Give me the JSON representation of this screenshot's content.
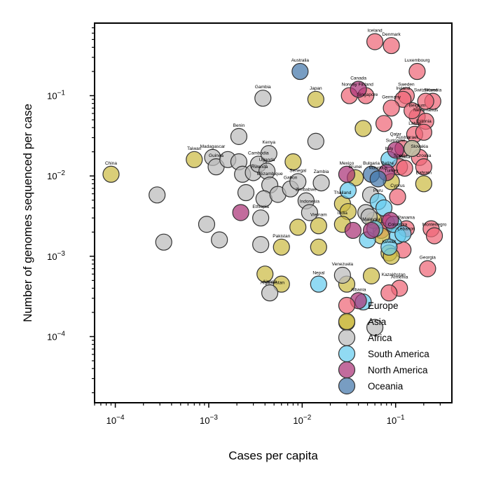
{
  "chart_data": {
    "type": "scatter",
    "xlabel": "Cases per capita",
    "ylabel": "Number of genomes sequenced per case",
    "x_scale": "log",
    "y_scale": "log",
    "xlim": [
      6e-05,
      0.4
    ],
    "ylim": [
      1.5e-05,
      0.8
    ],
    "x_ticks": [
      {
        "value": 0.0001,
        "base": "10",
        "exp": "−4"
      },
      {
        "value": 0.001,
        "base": "10",
        "exp": "−3"
      },
      {
        "value": 0.01,
        "base": "10",
        "exp": "−2"
      },
      {
        "value": 0.1,
        "base": "10",
        "exp": "−1"
      }
    ],
    "y_ticks": [
      {
        "value": 0.0001,
        "base": "10",
        "exp": "−4"
      },
      {
        "value": 0.001,
        "base": "10",
        "exp": "−3"
      },
      {
        "value": 0.01,
        "base": "10",
        "exp": "−2"
      },
      {
        "value": 0.1,
        "base": "10",
        "exp": "−1"
      }
    ],
    "legend_position": "lower-right",
    "grid": false,
    "series": [
      {
        "name": "Europe",
        "color": "#ee6677",
        "points": [
          {
            "x": 0.06,
            "y": 0.47,
            "label": "Iceland"
          },
          {
            "x": 0.09,
            "y": 0.42,
            "label": "Denmark"
          },
          {
            "x": 0.17,
            "y": 0.2,
            "label": "Luxembourg"
          },
          {
            "x": 0.25,
            "y": 0.085,
            "label": "Slovenia"
          },
          {
            "x": 0.13,
            "y": 0.1,
            "label": "Sweden"
          },
          {
            "x": 0.12,
            "y": 0.09,
            "label": "Ireland"
          },
          {
            "x": 0.21,
            "y": 0.085,
            "label": "Switzerland"
          },
          {
            "x": 0.032,
            "y": 0.1,
            "label": "Norway"
          },
          {
            "x": 0.048,
            "y": 0.1,
            "label": "Finland"
          },
          {
            "x": 0.09,
            "y": 0.07,
            "label": "Germany"
          },
          {
            "x": 0.17,
            "y": 0.055,
            "label": "Belgium"
          },
          {
            "x": 0.21,
            "y": 0.048,
            "label": "Netherlands"
          },
          {
            "x": 0.16,
            "y": 0.033,
            "label": "Latvia"
          },
          {
            "x": 0.2,
            "y": 0.035,
            "label": "Estonia"
          },
          {
            "x": 0.12,
            "y": 0.022,
            "label": "Austria"
          },
          {
            "x": 0.18,
            "y": 0.017,
            "label": "Slovakia"
          },
          {
            "x": 0.2,
            "y": 0.013,
            "label": "Croatia"
          },
          {
            "x": 0.11,
            "y": 0.013,
            "label": "Spain"
          },
          {
            "x": 0.125,
            "y": 0.0125,
            "label": "Malta"
          },
          {
            "x": 0.105,
            "y": 0.0055,
            "label": "Cyprus"
          },
          {
            "x": 0.08,
            "y": 0.0026,
            "label": ""
          },
          {
            "x": 0.13,
            "y": 0.0022,
            "label": "Panama"
          },
          {
            "x": 0.24,
            "y": 0.0022,
            "label": ""
          },
          {
            "x": 0.26,
            "y": 0.0018,
            "label": "Montenegro"
          },
          {
            "x": 0.22,
            "y": 0.0007,
            "label": "Georgia"
          },
          {
            "x": 0.11,
            "y": 0.0004,
            "label": "Armenia"
          },
          {
            "x": 0.085,
            "y": 0.00035,
            "label": ""
          },
          {
            "x": 0.07,
            "y": 0.0021,
            "label": ""
          },
          {
            "x": 0.075,
            "y": 0.045,
            "label": ""
          },
          {
            "x": 0.15,
            "y": 0.065,
            "label": ""
          },
          {
            "x": 0.12,
            "y": 0.0012,
            "label": ""
          }
        ]
      },
      {
        "name": "Asia",
        "color": "#ccbb44",
        "points": [
          {
            "x": 9e-05,
            "y": 0.0105,
            "label": "China"
          },
          {
            "x": 0.0007,
            "y": 0.016,
            "label": "Taiwan"
          },
          {
            "x": 0.014,
            "y": 0.09,
            "label": "Japan"
          },
          {
            "x": 0.045,
            "y": 0.039,
            "label": ""
          },
          {
            "x": 0.008,
            "y": 0.015,
            "label": ""
          },
          {
            "x": 0.037,
            "y": 0.0095,
            "label": "Brunei"
          },
          {
            "x": 0.09,
            "y": 0.0085,
            "label": "Turkey"
          },
          {
            "x": 0.2,
            "y": 0.008,
            "label": "Bahrain"
          },
          {
            "x": 0.15,
            "y": 0.022,
            "label": "Israel"
          },
          {
            "x": 0.027,
            "y": 0.0045,
            "label": "Thailand"
          },
          {
            "x": 0.031,
            "y": 0.0036,
            "label": ""
          },
          {
            "x": 0.027,
            "y": 0.0025,
            "label": "India"
          },
          {
            "x": 0.015,
            "y": 0.0024,
            "label": "Vietnam"
          },
          {
            "x": 0.009,
            "y": 0.0023,
            "label": ""
          },
          {
            "x": 0.015,
            "y": 0.0013,
            "label": ""
          },
          {
            "x": 0.006,
            "y": 0.0013,
            "label": "Pakistan"
          },
          {
            "x": 0.004,
            "y": 0.0006,
            "label": ""
          },
          {
            "x": 0.006,
            "y": 0.00045,
            "label": ""
          },
          {
            "x": 0.03,
            "y": 0.00045,
            "label": ""
          },
          {
            "x": 0.055,
            "y": 0.00057,
            "label": ""
          },
          {
            "x": 0.085,
            "y": 0.0011,
            "label": "Kuwait"
          },
          {
            "x": 0.09,
            "y": 0.001,
            "label": ""
          },
          {
            "x": 0.07,
            "y": 0.0018,
            "label": ""
          },
          {
            "x": 0.058,
            "y": 0.0028,
            "label": ""
          },
          {
            "x": 0.03,
            "y": 0.00015,
            "label": ""
          }
        ]
      },
      {
        "name": "Africa",
        "color": "#bbbbbb",
        "points": [
          {
            "x": 0.00028,
            "y": 0.0058,
            "label": ""
          },
          {
            "x": 0.00033,
            "y": 0.0015,
            "label": ""
          },
          {
            "x": 0.00095,
            "y": 0.0025,
            "label": ""
          },
          {
            "x": 0.0013,
            "y": 0.0016,
            "label": ""
          },
          {
            "x": 0.0038,
            "y": 0.093,
            "label": "Gambia"
          },
          {
            "x": 0.0021,
            "y": 0.031,
            "label": "Benin"
          },
          {
            "x": 0.0011,
            "y": 0.017,
            "label": "Madagascar"
          },
          {
            "x": 0.0012,
            "y": 0.013,
            "label": "Guinea"
          },
          {
            "x": 0.0016,
            "y": 0.016,
            "label": ""
          },
          {
            "x": 0.0021,
            "y": 0.015,
            "label": ""
          },
          {
            "x": 0.0023,
            "y": 0.0105,
            "label": ""
          },
          {
            "x": 0.0025,
            "y": 0.0062,
            "label": ""
          },
          {
            "x": 0.003,
            "y": 0.011,
            "label": ""
          },
          {
            "x": 0.0034,
            "y": 0.014,
            "label": "Cambodia"
          },
          {
            "x": 0.0044,
            "y": 0.019,
            "label": "Kenya"
          },
          {
            "x": 0.0042,
            "y": 0.0115,
            "label": "Uganda"
          },
          {
            "x": 0.0045,
            "y": 0.0077,
            "label": "Mozambique"
          },
          {
            "x": 0.0039,
            "y": 0.0052,
            "label": ""
          },
          {
            "x": 0.0055,
            "y": 0.0059,
            "label": ""
          },
          {
            "x": 0.0075,
            "y": 0.0069,
            "label": "Gabon"
          },
          {
            "x": 0.011,
            "y": 0.0049,
            "label": "Zimbabwe"
          },
          {
            "x": 0.012,
            "y": 0.0035,
            "label": "Indonesia"
          },
          {
            "x": 0.009,
            "y": 0.0085,
            "label": "Senegal"
          },
          {
            "x": 0.0036,
            "y": 0.003,
            "label": "Ethiopia"
          },
          {
            "x": 0.0036,
            "y": 0.0014,
            "label": ""
          },
          {
            "x": 0.014,
            "y": 0.027,
            "label": ""
          },
          {
            "x": 0.016,
            "y": 0.0082,
            "label": "Zambia"
          },
          {
            "x": 0.0045,
            "y": 0.00035,
            "label": "Algeria"
          },
          {
            "x": 0.027,
            "y": 0.00058,
            "label": "Venezuela"
          },
          {
            "x": 0.054,
            "y": 0.0058,
            "label": ""
          },
          {
            "x": 0.048,
            "y": 0.0035,
            "label": ""
          },
          {
            "x": 0.052,
            "y": 0.0031,
            "label": ""
          },
          {
            "x": 0.06,
            "y": 0.00013,
            "label": ""
          },
          {
            "x": 0.15,
            "y": 0.022,
            "label": ""
          }
        ]
      },
      {
        "name": "South America",
        "color": "#66ccee",
        "points": [
          {
            "x": 0.015,
            "y": 0.00045,
            "label": "Nepal"
          },
          {
            "x": 0.031,
            "y": 0.0066,
            "label": ""
          },
          {
            "x": 0.065,
            "y": 0.0048,
            "label": "Peru"
          },
          {
            "x": 0.075,
            "y": 0.004,
            "label": ""
          },
          {
            "x": 0.05,
            "y": 0.0016,
            "label": ""
          },
          {
            "x": 0.06,
            "y": 0.0022,
            "label": ""
          },
          {
            "x": 0.105,
            "y": 0.0018,
            "label": "Colombia"
          },
          {
            "x": 0.095,
            "y": 0.0025,
            "label": ""
          },
          {
            "x": 0.12,
            "y": 0.0019,
            "label": ""
          },
          {
            "x": 0.085,
            "y": 0.0013,
            "label": ""
          },
          {
            "x": 0.045,
            "y": 0.00027,
            "label": ""
          },
          {
            "x": 0.085,
            "y": 0.016,
            "label": ""
          }
        ]
      },
      {
        "name": "North America",
        "color": "#aa3377",
        "points": [
          {
            "x": 0.04,
            "y": 0.12,
            "label": "Canada"
          },
          {
            "x": 0.0022,
            "y": 0.0035,
            "label": ""
          },
          {
            "x": 0.03,
            "y": 0.0105,
            "label": "Mexico"
          },
          {
            "x": 0.055,
            "y": 0.0021,
            "label": "Malaysia"
          },
          {
            "x": 0.088,
            "y": 0.0028,
            "label": ""
          },
          {
            "x": 0.04,
            "y": 0.00028,
            "label": "Albania"
          },
          {
            "x": 0.1,
            "y": 0.021,
            "label": ""
          },
          {
            "x": 0.08,
            "y": 0.011,
            "label": ""
          },
          {
            "x": 0.035,
            "y": 0.0021,
            "label": ""
          }
        ]
      },
      {
        "name": "Oceania",
        "color": "#4477aa",
        "points": [
          {
            "x": 0.0095,
            "y": 0.2,
            "label": "Australia"
          },
          {
            "x": 0.055,
            "y": 0.0105,
            "label": "Bulgaria"
          },
          {
            "x": 0.065,
            "y": 0.0092,
            "label": "Mauritius"
          }
        ]
      }
    ],
    "extra_labels": [
      {
        "x": 0.05,
        "y": 0.075,
        "text": "Singapore"
      },
      {
        "x": 0.1,
        "y": 0.02,
        "text": "Suriname"
      },
      {
        "x": 0.085,
        "y": 0.016,
        "text": "Italy"
      },
      {
        "x": 0.1,
        "y": 0.024,
        "text": "Qatar"
      },
      {
        "x": 0.082,
        "y": 0.0105,
        "text": "Belize"
      },
      {
        "x": 0.13,
        "y": 0.0016,
        "text": "Lebanon"
      },
      {
        "x": 0.095,
        "y": 0.00043,
        "text": "Kazakhstan"
      },
      {
        "x": 0.0035,
        "y": 0.0095,
        "text": "Rwanda"
      },
      {
        "x": 0.0048,
        "y": 0.00034,
        "text": "Afghanistan"
      }
    ]
  }
}
